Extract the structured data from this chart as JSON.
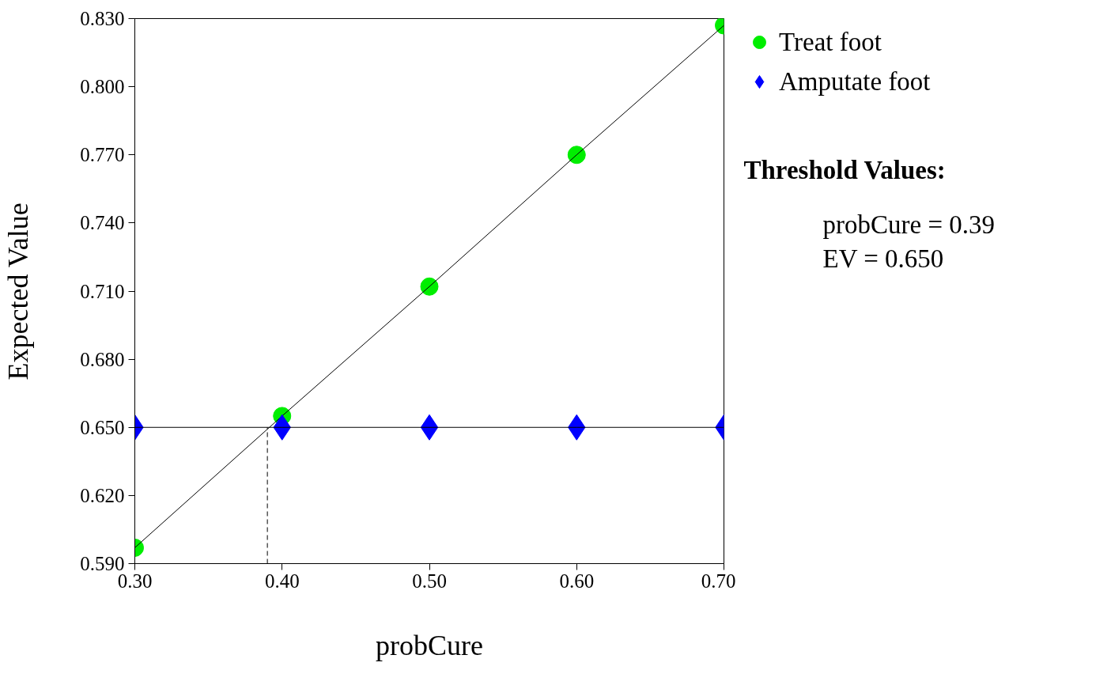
{
  "chart_data": {
    "type": "line",
    "xlabel": "probCure",
    "ylabel": "Expected Value",
    "x": [
      0.3,
      0.4,
      0.5,
      0.6,
      0.7
    ],
    "series": [
      {
        "name": "Treat foot",
        "color": "#00ee00",
        "marker": "circle",
        "values": [
          0.597,
          0.655,
          0.712,
          0.77,
          0.827
        ]
      },
      {
        "name": "Amputate foot",
        "color": "#0000ff",
        "marker": "diamond",
        "values": [
          0.65,
          0.65,
          0.65,
          0.65,
          0.65
        ]
      }
    ],
    "xlim": [
      0.3,
      0.7
    ],
    "xticks": [
      {
        "value": 0.3,
        "label": "0.30"
      },
      {
        "value": 0.4,
        "label": "0.40"
      },
      {
        "value": 0.5,
        "label": "0.50"
      },
      {
        "value": 0.6,
        "label": "0.60"
      },
      {
        "value": 0.7,
        "label": "0.70"
      }
    ],
    "ylim": [
      0.59,
      0.83
    ],
    "yticks": [
      {
        "value": 0.59,
        "label": "0.590"
      },
      {
        "value": 0.62,
        "label": "0.620"
      },
      {
        "value": 0.65,
        "label": "0.650"
      },
      {
        "value": 0.68,
        "label": "0.680"
      },
      {
        "value": 0.71,
        "label": "0.710"
      },
      {
        "value": 0.74,
        "label": "0.740"
      },
      {
        "value": 0.77,
        "label": "0.770"
      },
      {
        "value": 0.8,
        "label": "0.800"
      },
      {
        "value": 0.83,
        "label": "0.830"
      }
    ],
    "ref_lines": [
      {
        "axis": "x",
        "value": 0.39,
        "line_style": "dashed"
      }
    ],
    "annotations": [
      "Threshold Values:",
      "probCure = 0.39\nEV = 0.650"
    ],
    "legend": "top right",
    "grid": false,
    "line_style": "solid"
  }
}
